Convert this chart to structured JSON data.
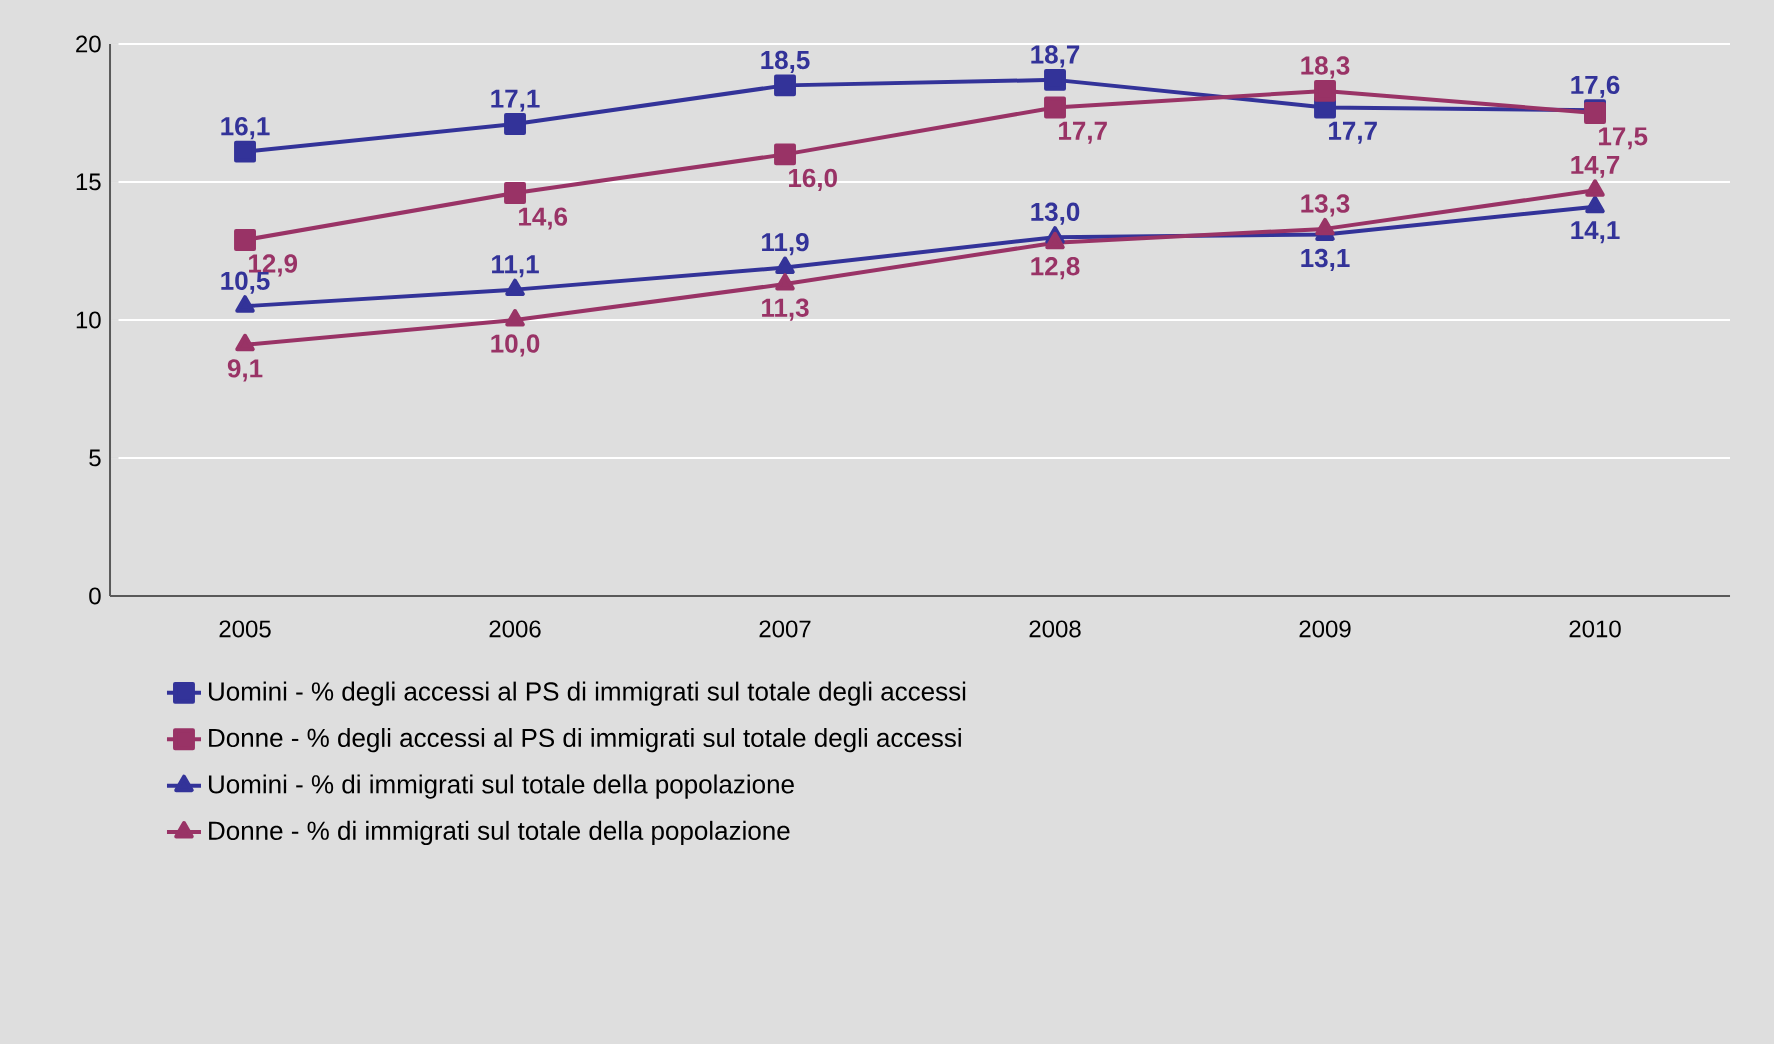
{
  "chart_data": {
    "type": "line",
    "categories": [
      "2005",
      "2006",
      "2007",
      "2008",
      "2009",
      "2010"
    ],
    "ylim": [
      0,
      20
    ],
    "yticks": [
      0,
      5,
      10,
      15,
      20
    ],
    "grid": "y",
    "legend": "bottom",
    "series": [
      {
        "name": "Uomini - % degli accessi al PS di immigrati sul totale degli accessi",
        "color": "#333399",
        "marker": "square",
        "values": [
          16.1,
          17.1,
          18.5,
          18.7,
          17.7,
          17.6
        ],
        "value_labels": [
          "16,1",
          "17,1",
          "18,5",
          "18,7",
          "17,7",
          "17,6"
        ]
      },
      {
        "name": "Donne - % degli accessi al PS di immigrati sul totale degli accessi",
        "color": "#993366",
        "marker": "square",
        "values": [
          12.9,
          14.6,
          16.0,
          17.7,
          18.3,
          17.5
        ],
        "value_labels": [
          "12,9",
          "14,6",
          "16,0",
          "17,7",
          "18,3",
          "17,5"
        ]
      },
      {
        "name": "Uomini - % di immigrati sul totale della popolazione",
        "color": "#333399",
        "marker": "triangle",
        "values": [
          10.5,
          11.1,
          11.9,
          13.0,
          13.1,
          14.1
        ],
        "value_labels": [
          "10,5",
          "11,1",
          "11,9",
          "13,0",
          "13,1",
          "14,1"
        ]
      },
      {
        "name": "Donne - % di immigrati sul totale della popolazione",
        "color": "#993366",
        "marker": "triangle",
        "values": [
          9.1,
          10.0,
          11.3,
          12.8,
          13.3,
          14.7
        ],
        "value_labels": [
          "9,1",
          "10,0",
          "11,3",
          "12,8",
          "13,3",
          "14,7"
        ]
      }
    ]
  }
}
